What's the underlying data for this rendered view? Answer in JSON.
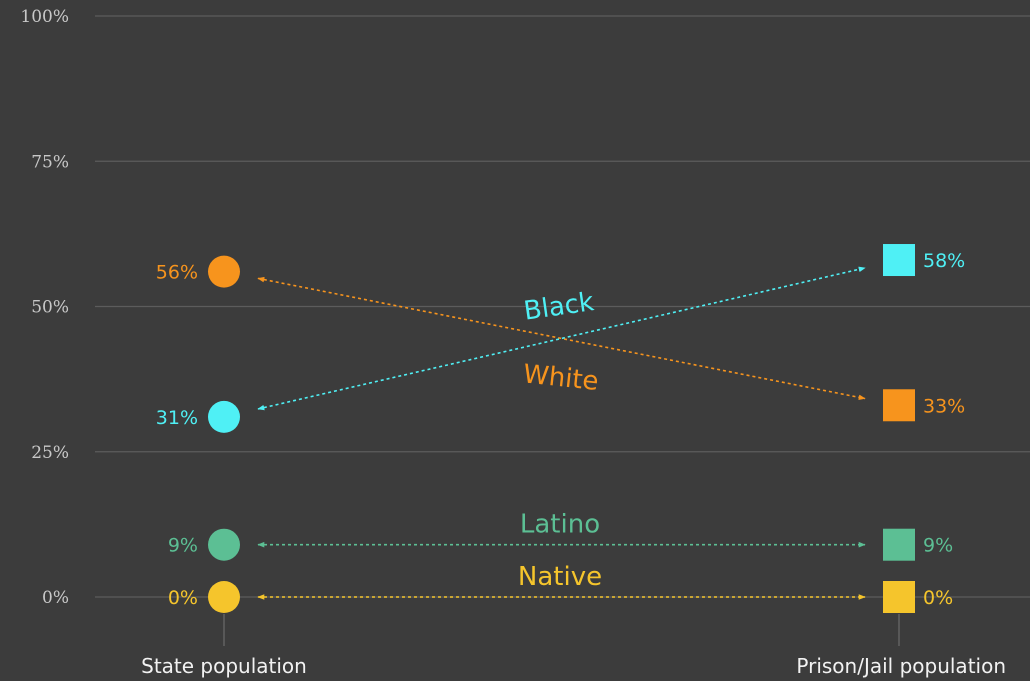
{
  "chart_data": {
    "type": "slope",
    "categories": [
      "State population",
      "Prison/Jail population"
    ],
    "ylim": [
      0,
      100
    ],
    "yticks": [
      {
        "value": 0,
        "label": "0%"
      },
      {
        "value": 25,
        "label": "25%"
      },
      {
        "value": 50,
        "label": "50%"
      },
      {
        "value": 75,
        "label": "75%"
      },
      {
        "value": 100,
        "label": "100%"
      }
    ],
    "grid": true,
    "series": [
      {
        "name": "White",
        "color": "#f7941d",
        "values": [
          56,
          33
        ],
        "labels": [
          "56%",
          "33%"
        ],
        "label_rotation": 6
      },
      {
        "name": "Black",
        "color": "#4ff0f5",
        "values": [
          31,
          58
        ],
        "labels": [
          "31%",
          "58%"
        ],
        "label_rotation": -8
      },
      {
        "name": "Latino",
        "color": "#5cbf94",
        "values": [
          9,
          9
        ],
        "labels": [
          "9%",
          "9%"
        ],
        "label_rotation": 0
      },
      {
        "name": "Native",
        "color": "#f5c52c",
        "values": [
          0,
          0
        ],
        "labels": [
          "0%",
          "0%"
        ],
        "label_rotation": 0
      }
    ]
  }
}
